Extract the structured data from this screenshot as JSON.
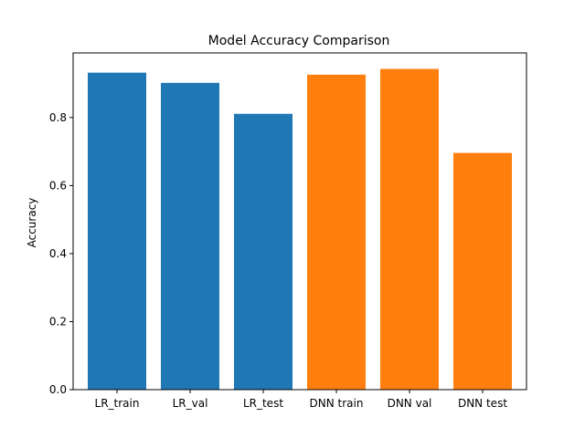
{
  "chart_data": {
    "type": "bar",
    "title": "Model Accuracy Comparison",
    "xlabel": "",
    "ylabel": "Accuracy",
    "categories": [
      "LR_train",
      "LR_val",
      "LR_test",
      "DNN train",
      "DNN val",
      "DNN test"
    ],
    "values": [
      0.932,
      0.902,
      0.811,
      0.926,
      0.943,
      0.696
    ],
    "bar_colors": [
      "#1f77b4",
      "#1f77b4",
      "#1f77b4",
      "#ff7f0e",
      "#ff7f0e",
      "#ff7f0e"
    ],
    "ylim": [
      0,
      0.99
    ],
    "yticks": [
      "0.0",
      "0.2",
      "0.4",
      "0.6",
      "0.8"
    ],
    "grid": false,
    "legend": "none"
  }
}
